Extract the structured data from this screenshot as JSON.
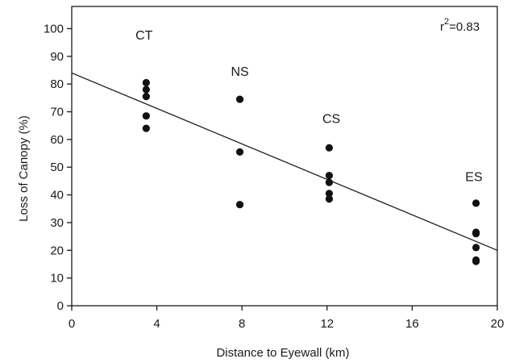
{
  "chart_data": {
    "type": "scatter",
    "xlabel": "Distance to Eyewall (km)",
    "ylabel": "Loss of Canopy (%)",
    "xlim": [
      0,
      20
    ],
    "ylim": [
      0,
      108
    ],
    "xticks": [
      0,
      4,
      8,
      12,
      16,
      20
    ],
    "yticks": [
      0,
      10,
      20,
      30,
      40,
      50,
      60,
      70,
      80,
      90,
      100
    ],
    "grid": false,
    "series": [
      {
        "points": [
          {
            "x": 3.5,
            "y": 80.5
          },
          {
            "x": 3.5,
            "y": 78
          },
          {
            "x": 3.5,
            "y": 75.5
          },
          {
            "x": 3.5,
            "y": 68.5
          },
          {
            "x": 3.5,
            "y": 64
          },
          {
            "x": 7.9,
            "y": 74.5
          },
          {
            "x": 7.9,
            "y": 55.5
          },
          {
            "x": 7.9,
            "y": 36.5
          },
          {
            "x": 12.1,
            "y": 57
          },
          {
            "x": 12.1,
            "y": 47
          },
          {
            "x": 12.1,
            "y": 44.5
          },
          {
            "x": 12.1,
            "y": 40.5
          },
          {
            "x": 12.1,
            "y": 38.5
          },
          {
            "x": 19,
            "y": 37
          },
          {
            "x": 19,
            "y": 26.5
          },
          {
            "x": 19,
            "y": 26
          },
          {
            "x": 19,
            "y": 21
          },
          {
            "x": 19,
            "y": 16.5
          },
          {
            "x": 19,
            "y": 16
          }
        ]
      }
    ],
    "trendline": {
      "x": [
        0,
        20
      ],
      "y": [
        84,
        20
      ]
    },
    "group_labels": [
      {
        "text": "CT",
        "x": 3.4,
        "y": 96
      },
      {
        "text": "NS",
        "x": 7.9,
        "y": 83
      },
      {
        "text": "CS",
        "x": 12.2,
        "y": 66
      },
      {
        "text": "ES",
        "x": 18.9,
        "y": 45
      }
    ],
    "annotation": {
      "r_prefix": "r",
      "r_exponent": "2",
      "r_value": "=0.83"
    }
  }
}
